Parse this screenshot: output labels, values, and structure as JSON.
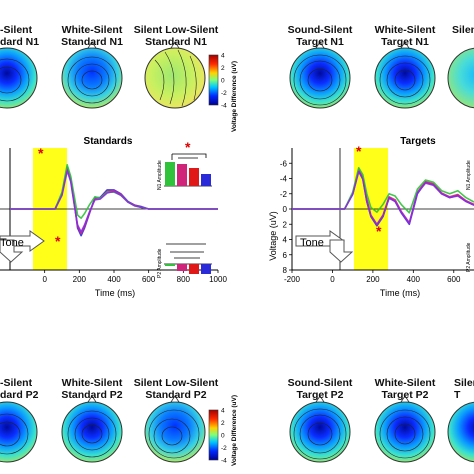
{
  "top_row": {
    "labels": [
      {
        "line1": "-Silent",
        "line2": "dard N1"
      },
      {
        "line1": "White-Silent",
        "line2": "Standard N1"
      },
      {
        "line1": "Silent Low-Silent",
        "line2": "Standard N1"
      },
      {
        "line1": "Sound-Silent",
        "line2": "Target N1"
      },
      {
        "line1": "White-Silent",
        "line2": "Target N1"
      },
      {
        "line1": "Silen",
        "line2": ""
      }
    ]
  },
  "bottom_row": {
    "labels": [
      {
        "line1": "-Silent",
        "line2": "dard P2"
      },
      {
        "line1": "White-Silent",
        "line2": "Standard P2"
      },
      {
        "line1": "Silent Low-Silent",
        "line2": "Standard P2"
      },
      {
        "line1": "Sound-Silent",
        "line2": "Target P2"
      },
      {
        "line1": "White-Silent",
        "line2": "Target P2"
      },
      {
        "line1": "Siler",
        "line2": "T"
      }
    ]
  },
  "colorbar": {
    "ticks": [
      "4",
      "2",
      "0",
      "-2",
      "-4"
    ],
    "label": "Voltage Difference (uV)",
    "colors": [
      "#a50000",
      "#ff2a00",
      "#ffd200",
      "#7dff7d",
      "#00c8ff",
      "#0028ff",
      "#000090"
    ]
  },
  "standards_panel": {
    "title": "Standards",
    "tone_label": "Tone",
    "inset_n1_label": "N1 Amplitude",
    "inset_p2_label": "P2 Amplitude",
    "star": "*",
    "x_ticks": [
      "0",
      "200",
      "400",
      "600",
      "800",
      "1000"
    ],
    "xlabel": "Time (ms)"
  },
  "targets_panel": {
    "title": "Targets",
    "tone_label": "Tone",
    "inset_n1_label": "N1 Amplitude",
    "inset_p2_label": "P2 Amplitude",
    "star": "*",
    "x_ticks": [
      "-200",
      "0",
      "200",
      "400",
      "600"
    ],
    "y_ticks": [
      "-6",
      "-4",
      "-2",
      "0",
      "2",
      "4",
      "6",
      "8"
    ],
    "xlabel": "Time (ms)",
    "ylabel": "Voltage (uV)"
  },
  "chart_data": [
    {
      "type": "line",
      "title": "Standards",
      "xlabel": "Time (ms)",
      "ylabel": "",
      "xlim": [
        -200,
        1000
      ],
      "ylim": [
        8,
        -7
      ],
      "series": [
        {
          "color": "#2a2ad8",
          "x": [
            -200,
            0,
            60,
            100,
            130,
            150,
            170,
            190,
            210,
            230,
            260,
            290,
            320,
            360,
            400,
            440,
            480,
            520,
            560,
            600,
            650,
            700,
            800,
            900,
            1000
          ],
          "y": [
            0,
            0,
            0,
            -2,
            -5.5,
            -4,
            -1,
            2.5,
            3.5,
            2.5,
            0.5,
            -1.5,
            -1.5,
            -2.5,
            -2.5,
            -2,
            -1,
            -0.5,
            -0.3,
            0,
            0,
            0,
            0,
            0,
            0
          ]
        },
        {
          "color": "#d0247a",
          "x": [
            -200,
            0,
            60,
            100,
            130,
            150,
            170,
            190,
            210,
            230,
            260,
            290,
            320,
            360,
            400,
            440,
            480,
            520,
            560,
            600,
            650,
            700,
            800,
            900,
            1000
          ],
          "y": [
            0,
            0,
            0,
            -2,
            -5.3,
            -3.8,
            -0.8,
            2.3,
            3.2,
            2.3,
            0.4,
            -1.3,
            -1.4,
            -2.3,
            -2.4,
            -1.9,
            -0.9,
            -0.5,
            -0.2,
            0,
            0,
            0,
            0,
            0,
            0
          ]
        },
        {
          "color": "#2fc23a",
          "x": [
            -200,
            0,
            60,
            100,
            130,
            150,
            170,
            190,
            210,
            230,
            260,
            290,
            320,
            360,
            400,
            440,
            480,
            520,
            560,
            600,
            650,
            700,
            800,
            900,
            1000
          ],
          "y": [
            0,
            0,
            0,
            -2.2,
            -5.8,
            -4.3,
            -1.8,
            0.8,
            1.2,
            0.6,
            -0.6,
            -1.6,
            -1.4,
            -2.2,
            -2.2,
            -1.8,
            -0.9,
            -0.4,
            -0.2,
            0,
            0,
            0,
            0,
            0,
            0
          ]
        },
        {
          "color": "#8a2be2",
          "x": [
            -200,
            0,
            60,
            100,
            130,
            150,
            170,
            190,
            210,
            230,
            260,
            290,
            320,
            360,
            400,
            440,
            480,
            520,
            560,
            600,
            650,
            700,
            800,
            900,
            1000
          ],
          "y": [
            0,
            0,
            0,
            -1.8,
            -5,
            -3.6,
            -0.7,
            2.1,
            3,
            2.1,
            0.3,
            -1.2,
            -1.3,
            -2.1,
            -2.3,
            -1.8,
            -0.9,
            -0.4,
            -0.2,
            0,
            0,
            0,
            0,
            0,
            0
          ]
        }
      ]
    },
    {
      "type": "line",
      "title": "Targets",
      "xlabel": "Time (ms)",
      "ylabel": "Voltage (uV)",
      "xlim": [
        -200,
        700
      ],
      "ylim": [
        8,
        -7
      ],
      "series": [
        {
          "color": "#2a2ad8",
          "x": [
            -200,
            0,
            60,
            100,
            130,
            150,
            170,
            190,
            220,
            250,
            280,
            310,
            340,
            380,
            420,
            460,
            500,
            540,
            580,
            620,
            660,
            700
          ],
          "y": [
            0,
            0,
            0,
            -2,
            -5,
            -4,
            -1,
            1,
            2.2,
            1,
            -1.5,
            -1,
            0.5,
            2,
            -2,
            -3.5,
            -3.2,
            -2,
            -1.5,
            -1.8,
            -1,
            -0.5
          ]
        },
        {
          "color": "#d0247a",
          "x": [
            -200,
            0,
            60,
            100,
            130,
            150,
            170,
            190,
            220,
            250,
            280,
            310,
            340,
            380,
            420,
            460,
            500,
            540,
            580,
            620,
            660,
            700
          ],
          "y": [
            0,
            0,
            0,
            -2,
            -5.2,
            -4.2,
            -1.3,
            0.8,
            2,
            0.8,
            -1.6,
            -1.2,
            0.3,
            1.8,
            -2.2,
            -3.6,
            -3.3,
            -2.1,
            -1.6,
            -1.9,
            -1.1,
            -0.6
          ]
        },
        {
          "color": "#2fc23a",
          "x": [
            -200,
            0,
            60,
            100,
            130,
            150,
            170,
            190,
            220,
            250,
            280,
            310,
            340,
            380,
            420,
            460,
            500,
            540,
            580,
            620,
            660,
            700
          ],
          "y": [
            0,
            0,
            0,
            -2.2,
            -5.4,
            -4.5,
            -2,
            -0.2,
            0.4,
            -0.6,
            -2,
            -1.7,
            -0.6,
            0.5,
            -2.6,
            -3.8,
            -3.5,
            -2.4,
            -2,
            -2.4,
            -1.5,
            -0.9
          ]
        },
        {
          "color": "#8a2be2",
          "x": [
            -200,
            0,
            60,
            100,
            130,
            150,
            170,
            190,
            220,
            250,
            280,
            310,
            340,
            380,
            420,
            460,
            500,
            540,
            580,
            620,
            660,
            700
          ],
          "y": [
            0,
            0,
            0,
            -1.9,
            -4.9,
            -3.9,
            -1,
            0.9,
            2.1,
            0.9,
            -1.4,
            -1,
            0.4,
            1.9,
            -2.1,
            -3.4,
            -3.1,
            -2,
            -1.5,
            -1.7,
            -1,
            -0.5
          ]
        }
      ]
    }
  ]
}
